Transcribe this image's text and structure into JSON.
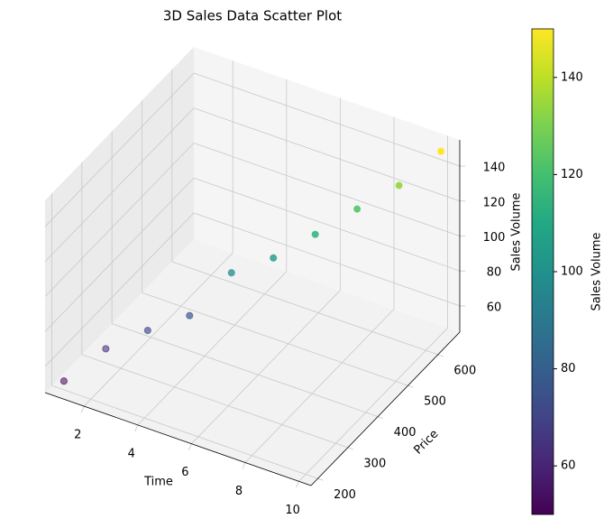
{
  "chart_data": {
    "type": "scatter3d",
    "title": "3D Sales Data Scatter Plot",
    "xlabel": "Time",
    "ylabel": "Price",
    "zlabel": "Sales Volume",
    "series": [
      {
        "x": [
          1,
          2,
          3,
          4,
          5,
          6,
          7,
          8,
          9,
          10
        ],
        "y": [
          200,
          250,
          300,
          350,
          400,
          450,
          500,
          550,
          600,
          650
        ],
        "z": [
          50,
          65,
          72,
          77,
          98,
          103,
          113,
          124,
          134,
          150
        ],
        "colors": [
          "#440154",
          "#472e7c",
          "#3f4889",
          "#39568c",
          "#228c8d",
          "#1f988b",
          "#2db27d",
          "#52c569",
          "#95d840",
          "#fde725"
        ]
      }
    ],
    "xlim": [
      0.55,
      10.45
    ],
    "xticks": [
      2,
      4,
      6,
      8,
      10
    ],
    "ylim": [
      177.5,
      672.5
    ],
    "yticks": [
      200,
      300,
      400,
      500,
      600
    ],
    "zlim": [
      45,
      155
    ],
    "zticks": [
      60,
      80,
      100,
      120,
      140
    ],
    "grid": true,
    "colorbar": {
      "label": "Sales Volume",
      "lim": [
        50,
        150
      ],
      "ticks": [
        60,
        80,
        100,
        120,
        140
      ]
    }
  }
}
